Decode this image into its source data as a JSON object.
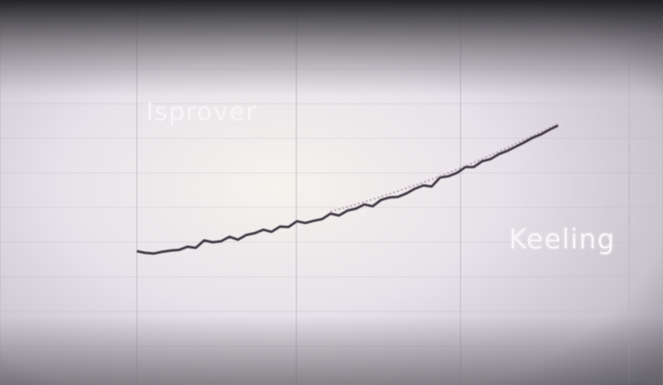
{
  "overlay": {
    "labels": [
      "Isprover",
      "Keeling"
    ]
  },
  "colors": {
    "background": "#e8e4ea",
    "grid": "#b8b2bc",
    "series_line": "#3a3540",
    "dotted_trace": "#a08098"
  },
  "chart_data": {
    "type": "line",
    "title": "",
    "xlabel": "",
    "ylabel": "",
    "grid": true,
    "legend": "none",
    "x_tick_labels": [
      "",
      "",
      "",
      ""
    ],
    "xlim": [
      0,
      100
    ],
    "ylim": [
      0,
      100
    ],
    "series": [
      {
        "style": "solid",
        "x": [
          0,
          2,
          4,
          6,
          8,
          10,
          12,
          14,
          16,
          18,
          20,
          22,
          24,
          26,
          28,
          30,
          32,
          34,
          36,
          38,
          40,
          42,
          44,
          46,
          48,
          50,
          52,
          54,
          56,
          58,
          60,
          62,
          64,
          66,
          68,
          70,
          72,
          74,
          76,
          78,
          80,
          82,
          84,
          86,
          88,
          90,
          92,
          94,
          96,
          98,
          100
        ],
        "y": [
          8.0,
          7.0,
          6.5,
          7.6,
          8.4,
          8.8,
          10.8,
          10.1,
          14.8,
          13.6,
          14.2,
          17.1,
          15.2,
          18.2,
          19.3,
          21.5,
          20.2,
          23.5,
          23.2,
          26.8,
          25.7,
          27.1,
          28.2,
          31.6,
          30.4,
          33.5,
          34.7,
          37.4,
          36.2,
          40.2,
          41.8,
          42.1,
          44.3,
          47.2,
          49.3,
          48.6,
          54.3,
          55.1,
          57.2,
          60.8,
          60.9,
          64.5,
          65.9,
          69.1,
          71.1,
          73.7,
          76.4,
          79.3,
          81.4,
          84.4,
          87.0
        ]
      },
      {
        "style": "dotted",
        "x": [
          46,
          50,
          54,
          58,
          62,
          66,
          70,
          74,
          78,
          82,
          86,
          90,
          94,
          98,
          100
        ],
        "y": [
          33.0,
          35.8,
          38.9,
          42.3,
          45.7,
          49.3,
          53.1,
          57.2,
          61.5,
          66.0,
          70.6,
          75.5,
          80.5,
          85.5,
          88.0
        ]
      }
    ]
  }
}
